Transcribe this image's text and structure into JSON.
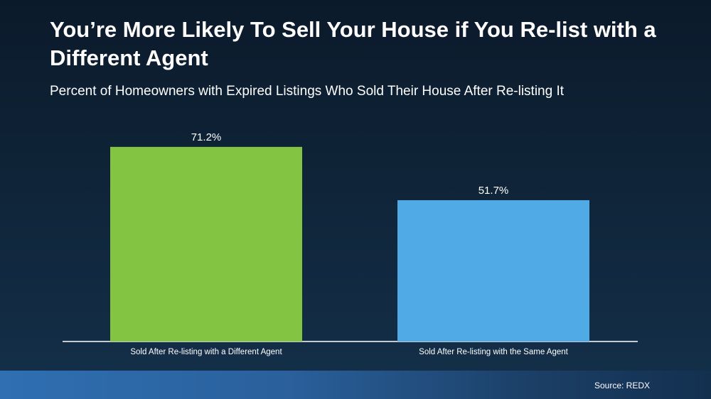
{
  "header": {
    "title": "You’re More Likely To Sell Your House if You Re-list with a Different Agent",
    "subtitle": "Percent of Homeowners with Expired Listings Who Sold Their House After Re-listing It"
  },
  "footer": {
    "source": "Source: REDX"
  },
  "chart_data": {
    "type": "bar",
    "categories": [
      "Sold After Re-listing with a Different Agent",
      "Sold After Re-listing with the Same Agent"
    ],
    "values": [
      71.2,
      51.7
    ],
    "value_labels": [
      "71.2%",
      "51.7%"
    ],
    "colors": [
      "#84c443",
      "#4faae6"
    ],
    "ylim": [
      0,
      100
    ],
    "grid": false,
    "legend": "none"
  }
}
